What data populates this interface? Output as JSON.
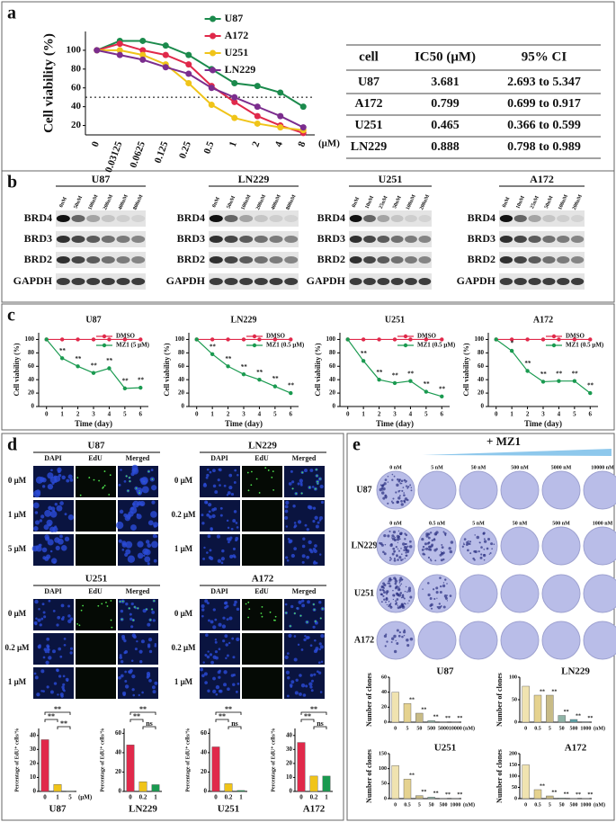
{
  "panels": [
    "a",
    "b",
    "c",
    "d",
    "e"
  ],
  "ic50_table": {
    "columns": [
      "cell",
      "IC50 (μM)",
      "95% CI"
    ],
    "rows": [
      [
        "U87",
        "3.681",
        "2.693 to 5.347"
      ],
      [
        "A172",
        "0.799",
        "0.699 to 0.917"
      ],
      [
        "U251",
        "0.465",
        "0.366 to 0.599"
      ],
      [
        "LN229",
        "0.888",
        "0.798 to 0.989"
      ]
    ]
  },
  "blot_proteins": [
    "BRD4",
    "BRD3",
    "BRD2",
    "GAPDH"
  ],
  "blots": [
    {
      "cell": "U87",
      "lanes": [
        "0nM",
        "50nM",
        "100nM",
        "200nM",
        "400nM",
        "800nM"
      ]
    },
    {
      "cell": "LN229",
      "lanes": [
        "0nM",
        "50nM",
        "100nM",
        "200nM",
        "400nM",
        "800nM"
      ]
    },
    {
      "cell": "U251",
      "lanes": [
        "0nM",
        "10nM",
        "25nM",
        "50nM",
        "100nM",
        "200nM"
      ]
    },
    {
      "cell": "A172",
      "lanes": [
        "0nM",
        "10nM",
        "25nM",
        "50nM",
        "100nM",
        "200nM"
      ]
    }
  ],
  "edu": {
    "channels": [
      "DAPI",
      "EdU",
      "Merged"
    ],
    "groups": [
      {
        "cell": "U87",
        "doses": [
          "0 μM",
          "1 μM",
          "5 μM"
        ]
      },
      {
        "cell": "LN229",
        "doses": [
          "0 μM",
          "0.2 μM",
          "1 μM"
        ]
      },
      {
        "cell": "U251",
        "doses": [
          "0 μM",
          "0.2 μM",
          "1 μM"
        ]
      },
      {
        "cell": "A172",
        "doses": [
          "0 μM",
          "0.2 μM",
          "1 μM"
        ]
      }
    ]
  },
  "colony": {
    "treatment": "+ MZ1",
    "rows": [
      {
        "cell": "U87",
        "doses": [
          "0 nM",
          "5 nM",
          "50 nM",
          "500 nM",
          "5000 nM",
          "10000 nM"
        ]
      },
      {
        "cell": "LN229",
        "doses": [
          "0 nM",
          "0.5 nM",
          "5 nM",
          "50 nM",
          "500 nM",
          "1000 nM"
        ]
      },
      {
        "cell": "U251"
      },
      {
        "cell": "A172"
      }
    ]
  },
  "chart_data": [
    {
      "type": "line",
      "ylabel": "Cell viability (%)",
      "categories": [
        "0",
        "0.03125",
        "0.0625",
        "0.125",
        "0.25",
        "0.5",
        "1",
        "2",
        "4",
        "8"
      ],
      "x_unit": "(μM)",
      "ylim": [
        10,
        120
      ],
      "yticks": [
        20,
        40,
        60,
        80,
        100
      ],
      "reference_line": 50,
      "legend": "top",
      "series": [
        {
          "name": "U87",
          "color": "#1b8a4c",
          "values": [
            100,
            110,
            110,
            105,
            95,
            80,
            65,
            62,
            55,
            40
          ]
        },
        {
          "name": "A172",
          "color": "#e0294a",
          "values": [
            100,
            107,
            100,
            95,
            85,
            62,
            45,
            30,
            20,
            12
          ]
        },
        {
          "name": "U251",
          "color": "#f0c419",
          "values": [
            100,
            100,
            95,
            85,
            65,
            42,
            28,
            22,
            18,
            15
          ]
        },
        {
          "name": "LN229",
          "color": "#7b2d8e",
          "values": [
            100,
            95,
            90,
            82,
            75,
            60,
            50,
            40,
            30,
            18
          ]
        }
      ]
    },
    {
      "type": "line",
      "title": "U87",
      "xlabel": "Time (day)",
      "ylabel": "Cell viability (%)",
      "x": [
        0,
        1,
        2,
        3,
        4,
        5,
        6
      ],
      "xlim": [
        -0.5,
        6.5
      ],
      "xticks": [
        0,
        1,
        2,
        3,
        4,
        5,
        6
      ],
      "ylim": [
        0,
        110
      ],
      "yticks": [
        0,
        20,
        40,
        60,
        80,
        100
      ],
      "legend": "top-right",
      "series": [
        {
          "name": "DMSO",
          "color": "#e0294a",
          "values": [
            100,
            100,
            100,
            100,
            100,
            100,
            100
          ]
        },
        {
          "name": "MZ1 (5 μM)",
          "color": "#1a9a50",
          "values": [
            100,
            72,
            60,
            50,
            57,
            27,
            28
          ]
        }
      ],
      "annotations": [
        {
          "x": 1,
          "text": "**"
        },
        {
          "x": 2,
          "text": "**"
        },
        {
          "x": 3,
          "text": "**"
        },
        {
          "x": 4,
          "text": "**"
        },
        {
          "x": 5,
          "text": "**"
        },
        {
          "x": 6,
          "text": "**"
        }
      ]
    },
    {
      "type": "line",
      "title": "LN229",
      "xlabel": "Time (day)",
      "ylabel": "Cell viability (%)",
      "x": [
        0,
        1,
        2,
        3,
        4,
        5,
        6
      ],
      "xlim": [
        -0.5,
        6.5
      ],
      "xticks": [
        0,
        1,
        2,
        3,
        4,
        5,
        6
      ],
      "ylim": [
        0,
        110
      ],
      "yticks": [
        0,
        20,
        40,
        60,
        80,
        100
      ],
      "legend": "top-right",
      "series": [
        {
          "name": "DMSO",
          "color": "#e0294a",
          "values": [
            100,
            100,
            100,
            100,
            100,
            100,
            100
          ]
        },
        {
          "name": "MZ1 (0.5 μM)",
          "color": "#1a9a50",
          "values": [
            100,
            78,
            60,
            48,
            40,
            30,
            20
          ]
        }
      ],
      "annotations": [
        {
          "x": 1,
          "text": "**"
        },
        {
          "x": 2,
          "text": "**"
        },
        {
          "x": 3,
          "text": "**"
        },
        {
          "x": 4,
          "text": "**"
        },
        {
          "x": 5,
          "text": "**"
        },
        {
          "x": 6,
          "text": "**"
        }
      ]
    },
    {
      "type": "line",
      "title": "U251",
      "xlabel": "Time (day)",
      "ylabel": "Cell viability (%)",
      "x": [
        0,
        1,
        2,
        3,
        4,
        5,
        6
      ],
      "xlim": [
        -0.5,
        6.5
      ],
      "xticks": [
        0,
        1,
        2,
        3,
        4,
        5,
        6
      ],
      "ylim": [
        0,
        110
      ],
      "yticks": [
        0,
        20,
        40,
        60,
        80,
        100
      ],
      "legend": "top-right",
      "series": [
        {
          "name": "DMSO",
          "color": "#e0294a",
          "values": [
            100,
            100,
            100,
            100,
            100,
            100,
            100
          ]
        },
        {
          "name": "MZ1 (0.5 μM)",
          "color": "#1a9a50",
          "values": [
            100,
            68,
            40,
            35,
            38,
            22,
            15
          ]
        }
      ],
      "annotations": [
        {
          "x": 1,
          "text": "**"
        },
        {
          "x": 2,
          "text": "**"
        },
        {
          "x": 3,
          "text": "**"
        },
        {
          "x": 4,
          "text": "**"
        },
        {
          "x": 5,
          "text": "**"
        },
        {
          "x": 6,
          "text": "**"
        }
      ]
    },
    {
      "type": "line",
      "title": "A172",
      "xlabel": "Time (day)",
      "ylabel": "Cell viability (%)",
      "x": [
        0,
        1,
        2,
        3,
        4,
        5,
        6
      ],
      "xlim": [
        -0.5,
        6.5
      ],
      "xticks": [
        0,
        1,
        2,
        3,
        4,
        5,
        6
      ],
      "ylim": [
        0,
        110
      ],
      "yticks": [
        0,
        20,
        40,
        60,
        80,
        100
      ],
      "legend": "top-right",
      "series": [
        {
          "name": "DMSO",
          "color": "#e0294a",
          "values": [
            100,
            100,
            100,
            100,
            100,
            100,
            100
          ]
        },
        {
          "name": "MZ1 (0.5 μM)",
          "color": "#1a9a50",
          "values": [
            100,
            83,
            53,
            37,
            38,
            38,
            20
          ]
        }
      ],
      "annotations": [
        {
          "x": 1,
          "text": "*"
        },
        {
          "x": 2,
          "text": "**"
        },
        {
          "x": 3,
          "text": "**"
        },
        {
          "x": 4,
          "text": "**"
        },
        {
          "x": 5,
          "text": "**"
        },
        {
          "x": 6,
          "text": "**"
        }
      ]
    },
    {
      "type": "bar",
      "title": "U87",
      "ylabel": "Percentage of EdU⁺ cells/%",
      "categories": [
        "0",
        "1",
        "5"
      ],
      "x_unit": "(μM)",
      "values": [
        37,
        5,
        0.3
      ],
      "colors": [
        "#e0294a",
        "#f0c419",
        "#1a9a50"
      ],
      "ylim": [
        0,
        45
      ],
      "yticks": [
        0,
        10,
        20,
        30,
        40
      ],
      "comparisons": [
        {
          "between": [
            1,
            2
          ],
          "text": "**"
        },
        {
          "between": [
            0,
            1
          ],
          "text": "**"
        },
        {
          "between": [
            0,
            2
          ],
          "text": "**"
        }
      ]
    },
    {
      "type": "bar",
      "title": "LN229",
      "ylabel": "Percentage of EdU⁺ cells/%",
      "categories": [
        "0",
        "0.2",
        "1"
      ],
      "values": [
        48,
        10,
        7
      ],
      "colors": [
        "#e0294a",
        "#f0c419",
        "#1a9a50"
      ],
      "ylim": [
        0,
        65
      ],
      "yticks": [
        0,
        20,
        40,
        60
      ],
      "comparisons": [
        {
          "between": [
            1,
            2
          ],
          "text": "ns"
        },
        {
          "between": [
            0,
            1
          ],
          "text": "**"
        },
        {
          "between": [
            0,
            2
          ],
          "text": "**"
        }
      ]
    },
    {
      "type": "bar",
      "title": "U251",
      "ylabel": "Percentage of EdU⁺ cells/%",
      "categories": [
        "0",
        "0.2",
        "1"
      ],
      "values": [
        46,
        8,
        1
      ],
      "colors": [
        "#e0294a",
        "#f0c419",
        "#1a9a50"
      ],
      "ylim": [
        0,
        65
      ],
      "yticks": [
        0,
        20,
        40,
        60
      ],
      "comparisons": [
        {
          "between": [
            1,
            2
          ],
          "text": "ns"
        },
        {
          "between": [
            0,
            1
          ],
          "text": "**"
        },
        {
          "between": [
            0,
            2
          ],
          "text": "**"
        }
      ]
    },
    {
      "type": "bar",
      "title": "A172",
      "ylabel": "Percentage of EdU⁺ cells/%",
      "categories": [
        "0",
        "0.2",
        "1"
      ],
      "values": [
        35,
        11,
        11
      ],
      "colors": [
        "#e0294a",
        "#f0c419",
        "#1a9a50"
      ],
      "ylim": [
        0,
        45
      ],
      "yticks": [
        0,
        10,
        20,
        30,
        40
      ],
      "comparisons": [
        {
          "between": [
            1,
            2
          ],
          "text": "ns"
        },
        {
          "between": [
            0,
            1
          ],
          "text": "**"
        },
        {
          "between": [
            0,
            2
          ],
          "text": "**"
        }
      ]
    },
    {
      "type": "bar",
      "title": "U87",
      "ylabel": "Number of clones",
      "categories": [
        "0",
        "5",
        "50",
        "500",
        "5000",
        "10000"
      ],
      "x_unit": "(nM)",
      "values": [
        40,
        25,
        12,
        2,
        0.5,
        0.5
      ],
      "colors": [
        "#f0e3b0",
        "#e5d28f",
        "#c8bb86",
        "#8fb3a6",
        "#5da3a8",
        "#3f8f9d"
      ],
      "ylim": [
        0,
        60
      ],
      "yticks": [
        0,
        20,
        40,
        60
      ],
      "annotations": [
        {
          "index": 1,
          "text": "**"
        },
        {
          "index": 2,
          "text": "**"
        },
        {
          "index": 3,
          "text": "**"
        },
        {
          "index": 4,
          "text": "**"
        },
        {
          "index": 5,
          "text": "**"
        }
      ]
    },
    {
      "type": "bar",
      "title": "LN229",
      "ylabel": "Number of clones",
      "categories": [
        "0",
        "0.5",
        "5",
        "50",
        "500",
        "1000"
      ],
      "x_unit": "(nM)",
      "values": [
        80,
        60,
        60,
        15,
        6,
        1
      ],
      "colors": [
        "#f0e3b0",
        "#e5d28f",
        "#c8bb86",
        "#8fb3a6",
        "#5da3a8",
        "#3f8f9d"
      ],
      "ylim": [
        0,
        100
      ],
      "yticks": [
        0,
        50,
        100
      ],
      "annotations": [
        {
          "index": 1,
          "text": "**"
        },
        {
          "index": 2,
          "text": "**"
        },
        {
          "index": 3,
          "text": "**"
        },
        {
          "index": 4,
          "text": "**"
        },
        {
          "index": 5,
          "text": "**"
        }
      ]
    },
    {
      "type": "bar",
      "title": "U251",
      "ylabel": "Number of clones",
      "categories": [
        "0",
        "0.5",
        "5",
        "50",
        "500",
        "1000"
      ],
      "x_unit": "(nM)",
      "values": [
        110,
        65,
        10,
        5,
        1,
        1
      ],
      "colors": [
        "#f0e3b0",
        "#e5d28f",
        "#c8bb86",
        "#8fb3a6",
        "#5da3a8",
        "#3f8f9d"
      ],
      "ylim": [
        0,
        150
      ],
      "yticks": [
        0,
        50,
        100,
        150
      ],
      "annotations": [
        {
          "index": 1,
          "text": "**"
        },
        {
          "index": 2,
          "text": "**"
        },
        {
          "index": 3,
          "text": "**"
        },
        {
          "index": 4,
          "text": "**"
        },
        {
          "index": 5,
          "text": "**"
        }
      ]
    },
    {
      "type": "bar",
      "title": "A172",
      "ylabel": "Number of clones",
      "categories": [
        "0",
        "0.5",
        "5",
        "50",
        "500",
        "1000"
      ],
      "x_unit": "(nM)",
      "values": [
        150,
        40,
        12,
        3,
        1,
        1
      ],
      "colors": [
        "#f0e3b0",
        "#e5d28f",
        "#c8bb86",
        "#8fb3a6",
        "#5da3a8",
        "#3f8f9d"
      ],
      "ylim": [
        0,
        200
      ],
      "yticks": [
        0,
        50,
        100,
        150,
        200
      ],
      "annotations": [
        {
          "index": 1,
          "text": "**"
        },
        {
          "index": 2,
          "text": "**"
        },
        {
          "index": 3,
          "text": "**"
        },
        {
          "index": 4,
          "text": "**"
        },
        {
          "index": 5,
          "text": "**"
        }
      ]
    }
  ]
}
